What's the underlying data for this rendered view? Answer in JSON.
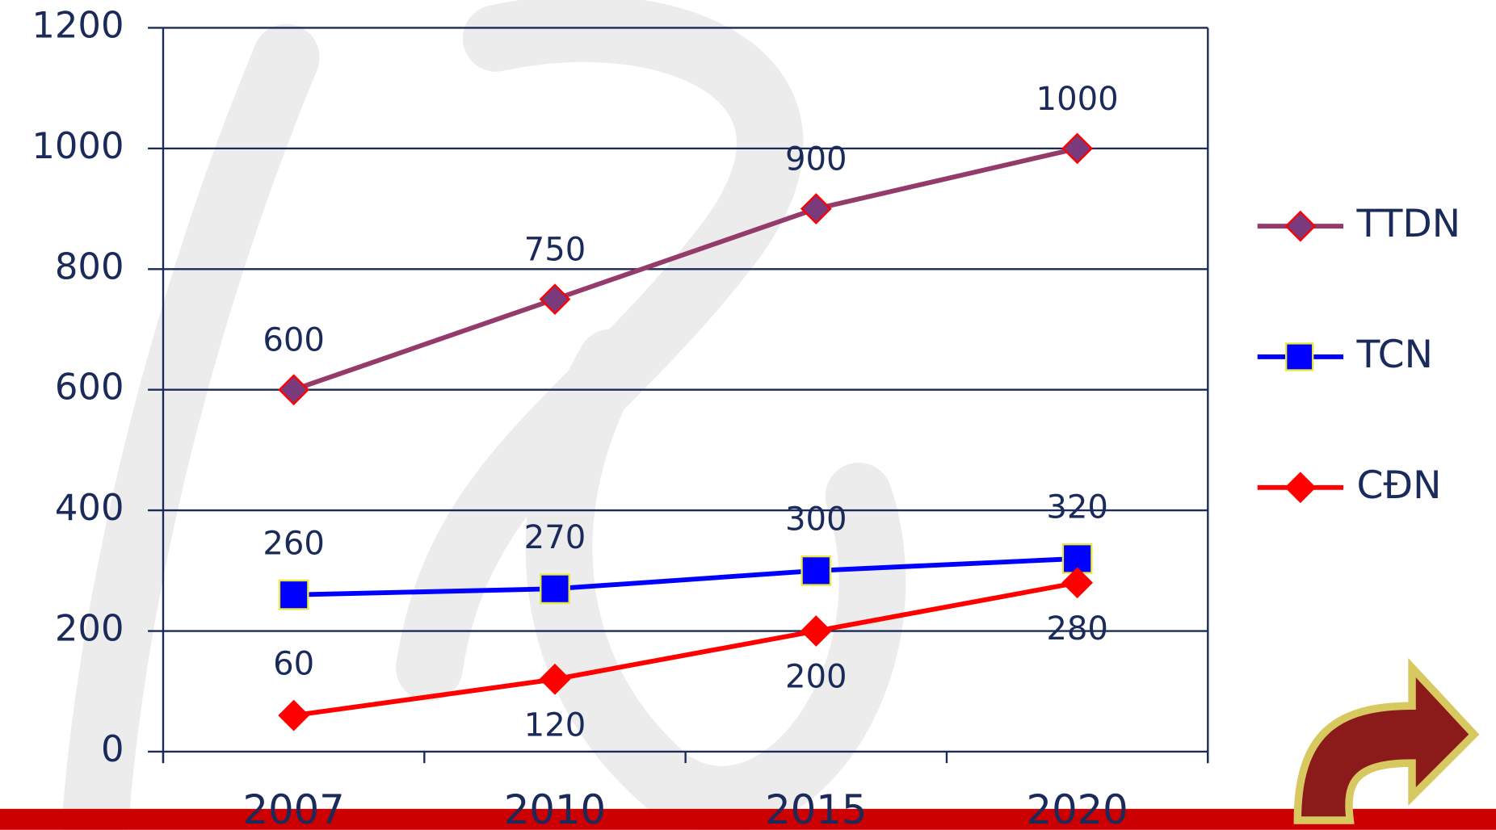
{
  "chart_data": {
    "type": "line",
    "categories": [
      "2007",
      "2010",
      "2015",
      "2020"
    ],
    "series": [
      {
        "name": "TTDN",
        "color": "#953b6b",
        "marker": "diamond",
        "marker_color": "#7b3a7b",
        "values": [
          600,
          750,
          900,
          1000
        ]
      },
      {
        "name": "TCN",
        "color": "#0000ff",
        "marker": "square",
        "marker_color": "#0000ff",
        "values": [
          260,
          270,
          300,
          320
        ]
      },
      {
        "name": "CĐN",
        "color": "#ff0000",
        "marker": "diamond",
        "marker_color": "#ff0000",
        "values": [
          60,
          120,
          200,
          280
        ]
      }
    ],
    "ylim": [
      0,
      1200
    ],
    "yticks": [
      0,
      200,
      400,
      600,
      800,
      1000,
      1200
    ],
    "grid": true,
    "legend": "right"
  }
}
